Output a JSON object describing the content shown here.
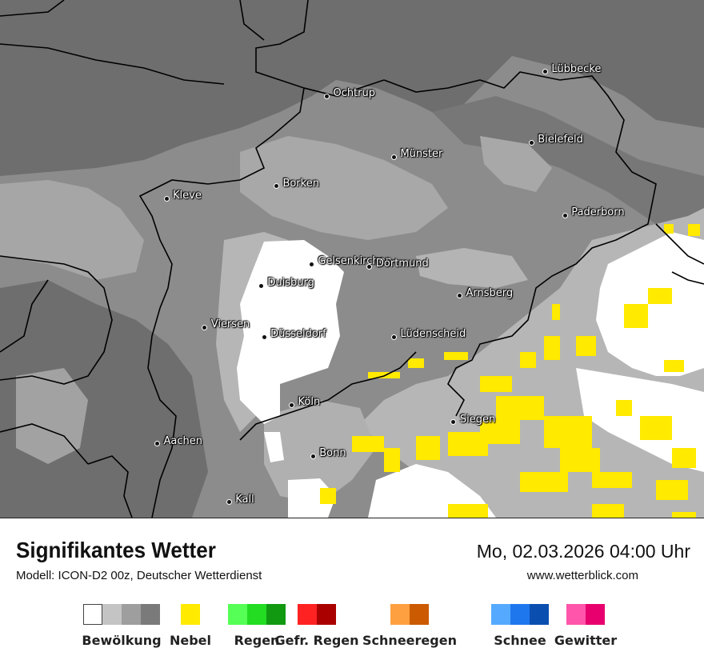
{
  "title": "Signifikantes Wetter",
  "subtitle": "Modell: ICON-D2 00z, Deutscher Wetterdienst",
  "datetime": "Mo, 02.03.2026 04:00 Uhr",
  "website": "www.wetterblick.com",
  "cities": [
    {
      "name": "Lübbecke",
      "lon": 8.62,
      "lat": 52.31
    },
    {
      "name": "Ochtrup",
      "lon": 7.19,
      "lat": 52.21
    },
    {
      "name": "Bielefeld",
      "lon": 8.53,
      "lat": 52.02
    },
    {
      "name": "Münster",
      "lon": 7.63,
      "lat": 51.96
    },
    {
      "name": "Borken",
      "lon": 6.86,
      "lat": 51.84
    },
    {
      "name": "Kleve",
      "lon": 6.14,
      "lat": 51.79
    },
    {
      "name": "Paderborn",
      "lon": 8.75,
      "lat": 51.72
    },
    {
      "name": "Gelsenkirchen",
      "lon": 7.09,
      "lat": 51.52
    },
    {
      "name": "Dortmund",
      "lon": 7.47,
      "lat": 51.51
    },
    {
      "name": "Duisburg",
      "lon": 6.76,
      "lat": 51.43
    },
    {
      "name": "Arnsberg",
      "lon": 8.06,
      "lat": 51.39
    },
    {
      "name": "Viersen",
      "lon": 6.39,
      "lat": 51.26
    },
    {
      "name": "Düsseldorf",
      "lon": 6.78,
      "lat": 51.22
    },
    {
      "name": "Lüdenscheid",
      "lon": 7.63,
      "lat": 51.22
    },
    {
      "name": "Köln",
      "lon": 6.96,
      "lat": 50.94
    },
    {
      "name": "Siegen",
      "lon": 8.02,
      "lat": 50.87
    },
    {
      "name": "Aachen",
      "lon": 6.08,
      "lat": 50.78
    },
    {
      "name": "Bonn",
      "lon": 7.1,
      "lat": 50.73
    },
    {
      "name": "Kall",
      "lon": 6.55,
      "lat": 50.54
    }
  ],
  "legend": [
    {
      "label": "Bewölkung",
      "colors": [
        "#ffffff",
        "#c4c4c4",
        "#9e9e9e",
        "#7a7a7a"
      ]
    },
    {
      "label": "Nebel",
      "colors": [
        "#ffea00"
      ]
    },
    {
      "label": "Regen",
      "colors": [
        "#55ff55",
        "#22dd22",
        "#119911"
      ]
    },
    {
      "label": "Gefr. Regen",
      "colors": [
        "#ff2222",
        "#aa0000"
      ]
    },
    {
      "label": "Schneeregen",
      "colors": [
        "#ffa040",
        "#cc5a00"
      ]
    },
    {
      "label": "Schnee",
      "colors": [
        "#55aaff",
        "#1f77ee",
        "#0a4fb0"
      ]
    },
    {
      "label": "Gewitter",
      "colors": [
        "#ff55aa",
        "#e8006e"
      ]
    }
  ]
}
